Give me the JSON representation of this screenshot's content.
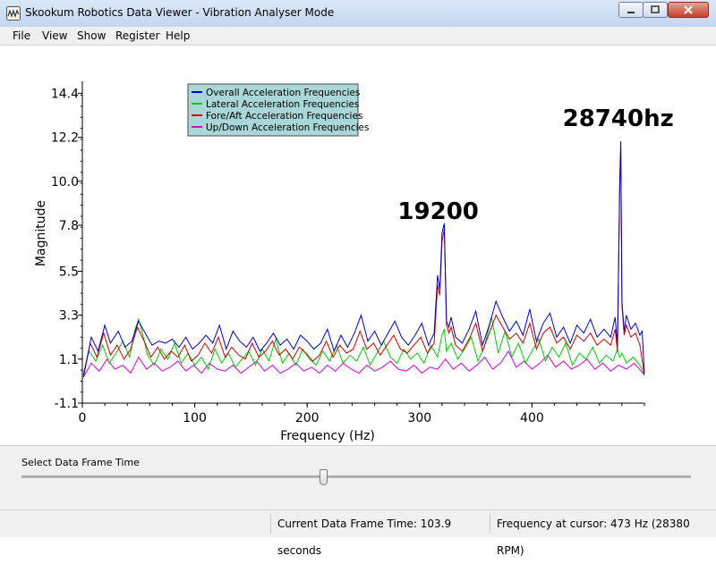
{
  "window": {
    "title": "Skookum Robotics Data Viewer - Vibration Analyser Mode",
    "app_icon": "wave-icon",
    "controls": [
      "minimize-icon",
      "maximize-icon",
      "close-icon"
    ]
  },
  "menu": {
    "items": [
      {
        "label": "File"
      },
      {
        "label": "View"
      },
      {
        "label": "Show"
      },
      {
        "label": "Register"
      },
      {
        "label": "Help"
      }
    ]
  },
  "chart_data": {
    "type": "line",
    "xlabel": "Frequency (Hz)",
    "ylabel": "Magnitude",
    "xlim": [
      0,
      500
    ],
    "ylim": [
      -1.1,
      15.0
    ],
    "xticks": [
      0,
      100,
      200,
      300,
      400
    ],
    "yticks": [
      "14.4",
      "12.2",
      "10.0",
      "7.8",
      "5.5",
      "3.3",
      "1.1",
      "-1.1"
    ],
    "ytick_values": [
      14.4,
      12.2,
      10.0,
      7.8,
      5.5,
      3.3,
      1.1,
      -1.1
    ],
    "legend": "top-left",
    "grid": false,
    "annotations": [
      {
        "text": "19200",
        "x": 322,
        "y": 7.9
      },
      {
        "text": "28740hz",
        "x": 479,
        "y": 12.0
      }
    ],
    "series": [
      {
        "name": "Overall Acceleration Frequencies",
        "color": "#0000cc",
        "x": [
          1,
          8,
          14,
          20,
          25,
          32,
          38,
          44,
          50,
          56,
          62,
          68,
          74,
          80,
          86,
          92,
          98,
          104,
          110,
          116,
          122,
          128,
          134,
          140,
          146,
          152,
          158,
          164,
          170,
          176,
          182,
          188,
          194,
          200,
          206,
          212,
          218,
          224,
          230,
          236,
          242,
          248,
          254,
          260,
          266,
          272,
          278,
          284,
          290,
          296,
          302,
          308,
          313,
          316,
          318,
          320,
          322,
          324,
          326,
          328,
          332,
          338,
          344,
          350,
          356,
          362,
          368,
          374,
          380,
          386,
          392,
          398,
          404,
          410,
          416,
          422,
          428,
          434,
          440,
          446,
          452,
          458,
          464,
          470,
          474,
          476,
          478,
          479,
          480,
          482,
          484,
          488,
          492,
          496,
          498,
          500
        ],
        "y": [
          0.2,
          2.2,
          1.5,
          2.8,
          1.9,
          2.5,
          1.7,
          2.0,
          3.0,
          2.4,
          1.8,
          2.0,
          1.9,
          2.1,
          1.7,
          2.2,
          1.6,
          1.9,
          2.3,
          1.9,
          2.8,
          1.6,
          2.5,
          2.0,
          1.7,
          2.2,
          1.5,
          1.9,
          2.4,
          1.8,
          2.1,
          1.6,
          2.3,
          2.0,
          1.6,
          1.9,
          2.6,
          1.5,
          2.3,
          1.7,
          2.4,
          3.3,
          2.0,
          2.5,
          1.8,
          2.4,
          3.0,
          2.2,
          1.8,
          2.3,
          2.9,
          1.8,
          2.4,
          5.3,
          4.6,
          7.4,
          7.9,
          3.0,
          2.7,
          3.2,
          2.2,
          1.9,
          2.6,
          3.5,
          1.8,
          2.8,
          4.0,
          3.2,
          2.5,
          3.0,
          2.3,
          3.6,
          2.0,
          2.9,
          3.4,
          2.2,
          2.7,
          1.9,
          2.8,
          2.4,
          3.1,
          2.2,
          2.6,
          2.2,
          3.2,
          1.8,
          9.9,
          12.0,
          4.0,
          2.5,
          3.3,
          2.6,
          2.9,
          2.3,
          2.5,
          0.4
        ]
      },
      {
        "name": "Lateral Acceleration Frequencies",
        "color": "#00cc00",
        "x": [
          1,
          6,
          12,
          18,
          24,
          30,
          36,
          42,
          47,
          50,
          53,
          58,
          64,
          70,
          76,
          82,
          88,
          94,
          100,
          106,
          112,
          118,
          124,
          130,
          136,
          142,
          148,
          154,
          160,
          166,
          172,
          178,
          184,
          190,
          196,
          202,
          208,
          214,
          220,
          226,
          232,
          238,
          244,
          250,
          256,
          262,
          268,
          274,
          280,
          286,
          292,
          298,
          304,
          310,
          316,
          320,
          322,
          324,
          328,
          334,
          340,
          346,
          352,
          358,
          364,
          370,
          376,
          382,
          388,
          394,
          400,
          406,
          412,
          418,
          424,
          430,
          436,
          442,
          448,
          454,
          460,
          466,
          472,
          476,
          478,
          480,
          484,
          490,
          496,
          500
        ],
        "y": [
          0.4,
          1.5,
          1.0,
          1.8,
          0.9,
          1.4,
          2.0,
          1.2,
          2.6,
          3.1,
          2.5,
          1.3,
          0.8,
          1.6,
          1.1,
          1.9,
          0.9,
          1.4,
          0.8,
          1.2,
          0.6,
          1.6,
          0.9,
          1.4,
          0.7,
          1.1,
          1.5,
          0.8,
          1.6,
          1.0,
          2.1,
          0.9,
          1.4,
          0.8,
          1.6,
          1.1,
          0.8,
          1.5,
          1.0,
          1.8,
          0.9,
          1.3,
          1.0,
          1.7,
          0.8,
          1.4,
          2.0,
          1.2,
          0.9,
          1.6,
          1.1,
          1.4,
          0.9,
          1.8,
          1.2,
          2.3,
          2.6,
          1.5,
          1.9,
          1.1,
          1.6,
          2.2,
          1.0,
          1.8,
          3.2,
          1.4,
          2.5,
          1.2,
          1.9,
          0.9,
          1.5,
          2.1,
          1.0,
          1.7,
          1.2,
          1.9,
          0.8,
          1.4,
          1.1,
          1.7,
          0.9,
          1.3,
          1.0,
          1.6,
          1.2,
          1.4,
          0.9,
          1.2,
          0.8,
          0.3
        ]
      },
      {
        "name": "Fore/Aft Acceleration Frequencies",
        "color": "#cc0000",
        "x": [
          1,
          7,
          13,
          19,
          25,
          31,
          37,
          43,
          49,
          55,
          61,
          67,
          73,
          79,
          85,
          91,
          97,
          103,
          109,
          115,
          121,
          127,
          133,
          139,
          145,
          151,
          157,
          163,
          169,
          175,
          181,
          187,
          193,
          199,
          205,
          211,
          217,
          223,
          229,
          235,
          241,
          247,
          253,
          259,
          265,
          271,
          277,
          283,
          289,
          295,
          301,
          307,
          313,
          316,
          318,
          320,
          322,
          324,
          326,
          328,
          332,
          338,
          344,
          350,
          356,
          362,
          368,
          374,
          380,
          386,
          392,
          398,
          404,
          410,
          416,
          422,
          428,
          434,
          440,
          446,
          452,
          458,
          464,
          470,
          474,
          476,
          478,
          479,
          480,
          482,
          484,
          488,
          492,
          496,
          500
        ],
        "y": [
          0.3,
          1.9,
          1.2,
          2.4,
          1.3,
          1.8,
          1.1,
          1.6,
          2.7,
          2.0,
          1.2,
          1.7,
          1.1,
          1.5,
          1.2,
          1.8,
          1.0,
          1.3,
          1.9,
          1.4,
          2.2,
          1.2,
          1.7,
          1.3,
          1.1,
          1.9,
          1.2,
          1.5,
          2.0,
          1.3,
          1.6,
          1.1,
          1.7,
          1.4,
          1.0,
          1.3,
          2.0,
          1.2,
          1.8,
          1.4,
          1.6,
          2.5,
          1.6,
          1.9,
          1.3,
          1.8,
          2.3,
          1.6,
          1.4,
          1.8,
          2.2,
          1.4,
          1.9,
          4.8,
          4.3,
          7.0,
          7.6,
          2.8,
          2.4,
          2.7,
          1.8,
          1.5,
          2.1,
          2.9,
          1.5,
          2.4,
          3.3,
          2.7,
          2.1,
          2.4,
          1.9,
          2.9,
          1.6,
          2.4,
          2.7,
          1.9,
          2.2,
          1.6,
          2.3,
          2.0,
          2.4,
          1.8,
          2.1,
          1.8,
          2.6,
          1.5,
          9.7,
          11.6,
          3.8,
          2.3,
          2.8,
          2.2,
          2.4,
          1.8,
          0.3
        ]
      },
      {
        "name": "Up/Down Acceleration Frequencies",
        "color": "#dd00dd",
        "x": [
          1,
          8,
          15,
          22,
          29,
          36,
          43,
          50,
          57,
          64,
          71,
          78,
          85,
          92,
          99,
          106,
          113,
          120,
          127,
          134,
          141,
          148,
          155,
          162,
          169,
          176,
          183,
          190,
          197,
          204,
          211,
          218,
          225,
          232,
          239,
          246,
          253,
          260,
          267,
          274,
          281,
          288,
          295,
          302,
          309,
          316,
          323,
          330,
          337,
          344,
          351,
          358,
          365,
          372,
          379,
          386,
          393,
          400,
          407,
          414,
          421,
          428,
          435,
          442,
          449,
          456,
          463,
          470,
          477,
          484,
          491,
          500
        ],
        "y": [
          0.2,
          0.9,
          0.5,
          1.1,
          0.6,
          0.8,
          0.4,
          1.2,
          0.6,
          0.9,
          0.5,
          0.7,
          1.0,
          0.5,
          0.8,
          0.4,
          0.9,
          0.6,
          0.5,
          0.8,
          0.4,
          0.7,
          1.0,
          0.5,
          0.8,
          0.4,
          0.6,
          0.9,
          0.5,
          0.7,
          0.4,
          0.8,
          0.5,
          0.9,
          0.6,
          0.4,
          0.8,
          0.5,
          0.7,
          1.0,
          0.6,
          0.5,
          0.8,
          0.4,
          0.7,
          0.6,
          1.1,
          0.6,
          0.9,
          0.5,
          0.8,
          1.2,
          0.6,
          0.9,
          1.5,
          0.7,
          1.0,
          0.6,
          0.9,
          1.3,
          0.7,
          1.0,
          0.6,
          0.8,
          1.1,
          0.6,
          0.9,
          0.5,
          0.8,
          0.6,
          0.9,
          0.3
        ]
      }
    ]
  },
  "bottom": {
    "frame_label": "Select Data Frame Time",
    "slider_position": 0.45
  },
  "status": {
    "frame_time": "Current Data Frame Time: 103.9 seconds",
    "cursor_freq": "Frequency at cursor: 473 Hz (28380 RPM)"
  }
}
